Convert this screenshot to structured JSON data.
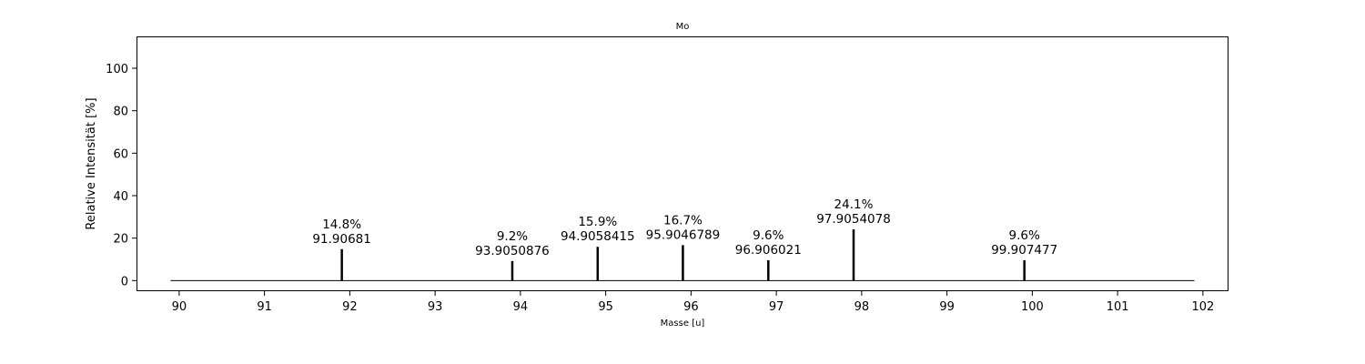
{
  "chart_data": {
    "type": "bar",
    "title": "Mo",
    "xlabel": "Masse [u]",
    "ylabel": "Relative Intensität [%]",
    "xlim": [
      89.5,
      102.3
    ],
    "ylim": [
      -5,
      115
    ],
    "xticks": [
      90,
      91,
      92,
      93,
      94,
      95,
      96,
      97,
      98,
      99,
      100,
      101,
      102
    ],
    "yticks": [
      0,
      20,
      40,
      60,
      80,
      100
    ],
    "baseline": [
      89.9,
      101.9
    ],
    "grid": false,
    "peaks": [
      {
        "mass": 91.90681,
        "intensity": 14.8,
        "pct_label": "14.8%",
        "mass_label": "91.90681"
      },
      {
        "mass": 93.9050876,
        "intensity": 9.2,
        "pct_label": "9.2%",
        "mass_label": "93.9050876"
      },
      {
        "mass": 94.9058415,
        "intensity": 15.9,
        "pct_label": "15.9%",
        "mass_label": "94.9058415"
      },
      {
        "mass": 95.9046789,
        "intensity": 16.7,
        "pct_label": "16.7%",
        "mass_label": "95.9046789"
      },
      {
        "mass": 96.906021,
        "intensity": 9.6,
        "pct_label": "9.6%",
        "mass_label": "96.906021"
      },
      {
        "mass": 97.9054078,
        "intensity": 24.1,
        "pct_label": "24.1%",
        "mass_label": "97.9054078"
      },
      {
        "mass": 99.907477,
        "intensity": 9.6,
        "pct_label": "9.6%",
        "mass_label": "99.907477"
      }
    ],
    "colors": {
      "peak": "#000000",
      "baseline": "#000000",
      "axes": "#000000"
    }
  }
}
